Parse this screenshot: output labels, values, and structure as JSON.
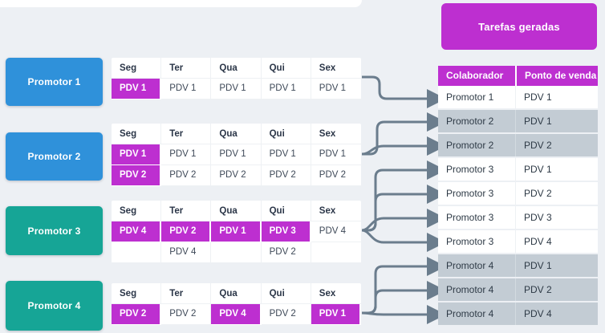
{
  "title_block": {
    "label": "Tarefas geradas"
  },
  "schedule_days": [
    "Seg",
    "Ter",
    "Qua",
    "Qui",
    "Sex"
  ],
  "groups": [
    {
      "promoter": "Promotor 1",
      "color_key": "blue",
      "rows": [
        [
          {
            "t": "PDV 1",
            "h": true
          },
          {
            "t": "PDV 1",
            "h": false
          },
          {
            "t": "PDV 1",
            "h": false
          },
          {
            "t": "PDV 1",
            "h": false
          },
          {
            "t": "PDV 1",
            "h": false
          }
        ]
      ]
    },
    {
      "promoter": "Promotor 2",
      "color_key": "blue",
      "rows": [
        [
          {
            "t": "PDV 1",
            "h": true
          },
          {
            "t": "PDV 1",
            "h": false
          },
          {
            "t": "PDV 1",
            "h": false
          },
          {
            "t": "PDV 1",
            "h": false
          },
          {
            "t": "PDV 1",
            "h": false
          }
        ],
        [
          {
            "t": "PDV 2",
            "h": true
          },
          {
            "t": "PDV 2",
            "h": false
          },
          {
            "t": "PDV 2",
            "h": false
          },
          {
            "t": "PDV 2",
            "h": false
          },
          {
            "t": "PDV 2",
            "h": false
          }
        ]
      ]
    },
    {
      "promoter": "Promotor 3",
      "color_key": "teal",
      "rows": [
        [
          {
            "t": "PDV 4",
            "h": true
          },
          {
            "t": "PDV 2",
            "h": true
          },
          {
            "t": "PDV 1",
            "h": true
          },
          {
            "t": "PDV 3",
            "h": true
          },
          {
            "t": "PDV 4",
            "h": false
          }
        ],
        [
          {
            "t": "",
            "h": false
          },
          {
            "t": "PDV 4",
            "h": false
          },
          {
            "t": "",
            "h": false
          },
          {
            "t": "PDV 2",
            "h": false
          },
          {
            "t": "",
            "h": false
          }
        ]
      ]
    },
    {
      "promoter": "Promotor 4",
      "color_key": "teal",
      "rows": [
        [
          {
            "t": "PDV 2",
            "h": true
          },
          {
            "t": "PDV 2",
            "h": false
          },
          {
            "t": "PDV 4",
            "h": true
          },
          {
            "t": "PDV 2",
            "h": false
          },
          {
            "t": "PDV 1",
            "h": true
          }
        ]
      ]
    }
  ],
  "tasks_table": {
    "headers": [
      "Colaborador",
      "Ponto de venda"
    ],
    "rows": [
      {
        "colaborador": "Promotor 1",
        "pdv": "PDV 1",
        "shaded": false
      },
      {
        "colaborador": "Promotor 2",
        "pdv": "PDV 1",
        "shaded": true
      },
      {
        "colaborador": "Promotor 2",
        "pdv": "PDV 2",
        "shaded": true
      },
      {
        "colaborador": "Promotor 3",
        "pdv": "PDV 1",
        "shaded": false
      },
      {
        "colaborador": "Promotor 3",
        "pdv": "PDV 2",
        "shaded": false
      },
      {
        "colaborador": "Promotor 3",
        "pdv": "PDV 3",
        "shaded": false
      },
      {
        "colaborador": "Promotor 3",
        "pdv": "PDV 4",
        "shaded": false
      },
      {
        "colaborador": "Promotor 4",
        "pdv": "PDV 1",
        "shaded": true
      },
      {
        "colaborador": "Promotor 4",
        "pdv": "PDV 2",
        "shaded": true
      },
      {
        "colaborador": "Promotor 4",
        "pdv": "PDV 4",
        "shaded": true
      }
    ]
  },
  "colors": {
    "background": "#edf0f4",
    "blue": "#2f91da",
    "teal": "#16a596",
    "magenta": "#bd2fd0",
    "shaded_row": "#c3ccd4",
    "arrow": "#6b7d8d",
    "header_text": "#2b3648",
    "cell_text": "#3d4857"
  }
}
